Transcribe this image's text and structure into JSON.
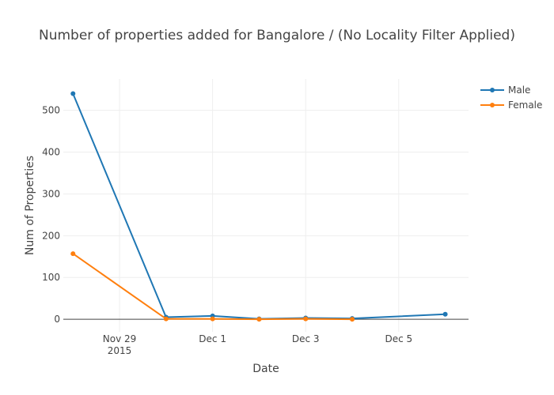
{
  "chart_data": {
    "type": "line",
    "title": "Number of properties added for Bangalore / (No Locality Filter Applied)",
    "xlabel": "Date",
    "ylabel": "Num of Properties",
    "x_ticks": [
      {
        "date": "2015-11-29",
        "label": "Nov 29",
        "sublabel": "2015"
      },
      {
        "date": "2015-12-01",
        "label": "Dec 1",
        "sublabel": ""
      },
      {
        "date": "2015-12-03",
        "label": "Dec 3",
        "sublabel": ""
      },
      {
        "date": "2015-12-05",
        "label": "Dec 5",
        "sublabel": ""
      }
    ],
    "xlim": [
      "2015-11-27T19:00",
      "2015-12-06T12:00"
    ],
    "y_ticks": [
      0,
      100,
      200,
      300,
      400,
      500
    ],
    "ylim": [
      -30,
      575
    ],
    "grid": true,
    "legend_position": "top-right",
    "series": [
      {
        "name": "Male",
        "color": "#1f77b4",
        "points": [
          {
            "x": "2015-11-28",
            "y": 540
          },
          {
            "x": "2015-11-30",
            "y": 5
          },
          {
            "x": "2015-12-01",
            "y": 8
          },
          {
            "x": "2015-12-02",
            "y": 1
          },
          {
            "x": "2015-12-03",
            "y": 3
          },
          {
            "x": "2015-12-04",
            "y": 2
          },
          {
            "x": "2015-12-06",
            "y": 12
          }
        ]
      },
      {
        "name": "Female",
        "color": "#ff7f0e",
        "points": [
          {
            "x": "2015-11-28",
            "y": 157
          },
          {
            "x": "2015-11-30",
            "y": 1
          },
          {
            "x": "2015-12-01",
            "y": 1
          },
          {
            "x": "2015-12-02",
            "y": 0
          },
          {
            "x": "2015-12-03",
            "y": 1
          },
          {
            "x": "2015-12-04",
            "y": 0
          }
        ]
      }
    ]
  }
}
